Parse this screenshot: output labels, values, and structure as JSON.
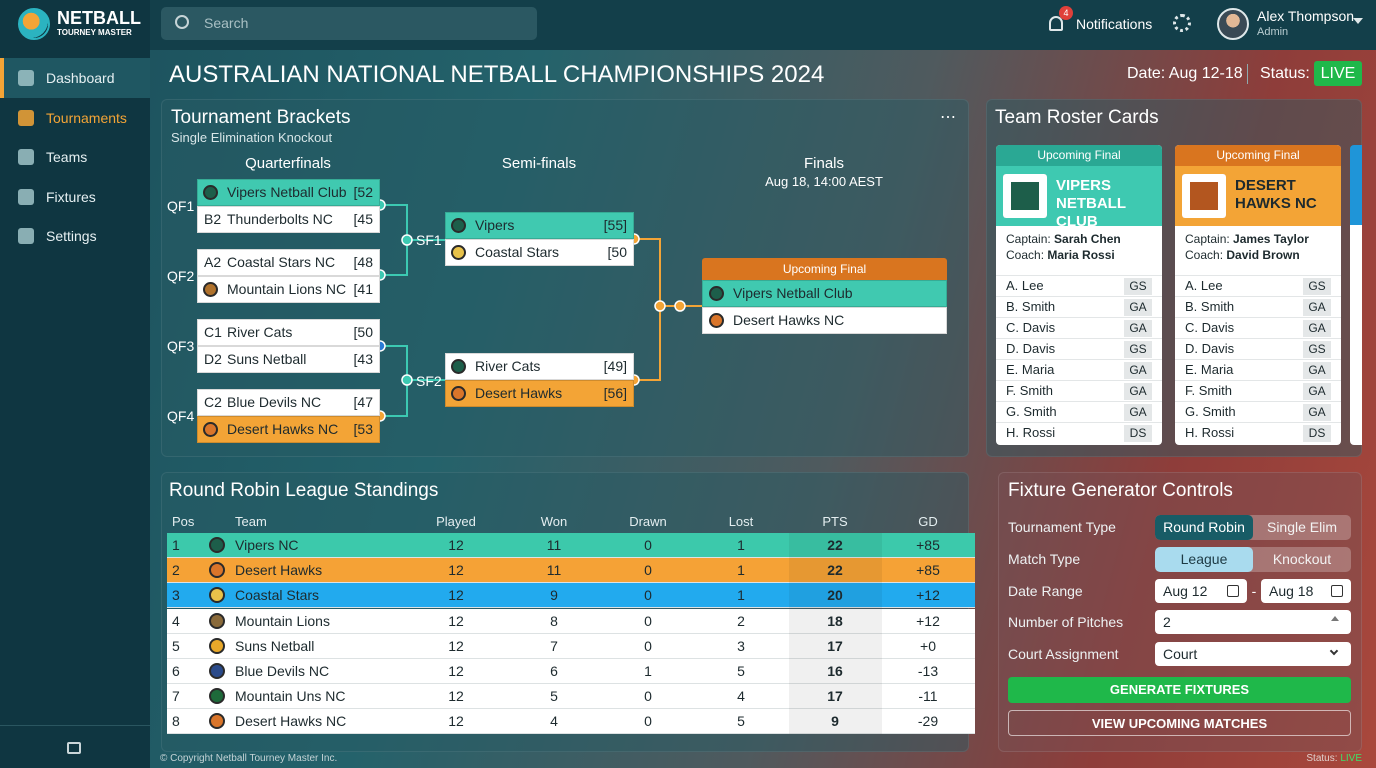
{
  "brand": {
    "name": "NETBALL",
    "tagline": "TOURNEY MASTER"
  },
  "topbar": {
    "search_placeholder": "Search",
    "notification_count": "4",
    "notifications": "Notifications",
    "user_name": "Alex Thompson",
    "user_role": "Admin"
  },
  "nav": [
    "Dashboard",
    "Tournaments",
    "Teams",
    "Fixtures",
    "Settings"
  ],
  "page": {
    "title": "AUSTRALIAN NATIONAL NETBALL CHAMPIONSHIPS 2024",
    "date": "Date: Aug 12-18",
    "status_label": "Status:",
    "status": "LIVE"
  },
  "brackets": {
    "title": "Tournament Brackets",
    "subtitle": "Single Elimination Knockout",
    "rounds": [
      "Quarterfinals",
      "Semi-finals",
      "Finals"
    ],
    "final_time": "Aug 18, 14:00 AEST",
    "quarterfinals": [
      {
        "label": "QF1",
        "teams": [
          {
            "name": "Vipers Netball Club",
            "score": "[52"
          },
          {
            "seed": "B2",
            "name": "Thunderbolts NC",
            "score": "[45"
          }
        ]
      },
      {
        "label": "QF2",
        "teams": [
          {
            "seed": "A2",
            "name": "Coastal Stars NC",
            "score": "[48"
          },
          {
            "name": "Mountain Lions NC",
            "score": "[41"
          }
        ]
      },
      {
        "label": "QF3",
        "teams": [
          {
            "seed": "C1",
            "name": "River Cats",
            "score": "[50"
          },
          {
            "seed": "D2",
            "name": "Suns Netball",
            "score": "[43"
          }
        ]
      },
      {
        "label": "QF4",
        "teams": [
          {
            "seed": "C2",
            "name": "Blue Devils NC",
            "score": "[47"
          },
          {
            "name": "Desert Hawks NC",
            "score": "[53"
          }
        ]
      }
    ],
    "semifinals": [
      {
        "label": "SF1",
        "teams": [
          {
            "name": "Vipers",
            "score": "[55]"
          },
          {
            "name": "Coastal Stars",
            "score": "[50"
          }
        ]
      },
      {
        "label": "SF2",
        "teams": [
          {
            "name": "River Cats",
            "score": "[49]"
          },
          {
            "name": "Desert Hawks",
            "score": "[56]"
          }
        ]
      }
    ],
    "final": {
      "badge": "Upcoming Final",
      "teams": [
        "Vipers Netball Club",
        "Desert Hawks NC"
      ]
    }
  },
  "roster": {
    "title": "Team Roster Cards",
    "cards": [
      {
        "badge": "Upcoming Final",
        "team": "VIPERS NETBALL CLUB",
        "captain_label": "Captain:",
        "captain": "Sarah Chen",
        "coach_label": "Coach:",
        "coach": "Maria Rossi",
        "players": [
          [
            "A. Lee",
            "GS"
          ],
          [
            "B. Smith",
            "GA"
          ],
          [
            "C. Davis",
            "GA"
          ],
          [
            "D. Davis",
            "GS"
          ],
          [
            "E. Maria",
            "GA"
          ],
          [
            "F. Smith",
            "GA"
          ],
          [
            "G. Smith",
            "GA"
          ],
          [
            "H. Rossi",
            "DS"
          ]
        ]
      },
      {
        "badge": "Upcoming Final",
        "team": "DESERT HAWKS NC",
        "captain_label": "Captain:",
        "captain": "James Taylor",
        "coach_label": "Coach:",
        "coach": "David Brown",
        "players": [
          [
            "A. Lee",
            "GS"
          ],
          [
            "B. Smith",
            "GA"
          ],
          [
            "C. Davis",
            "GA"
          ],
          [
            "D. Davis",
            "GS"
          ],
          [
            "E. Maria",
            "GA"
          ],
          [
            "F. Smith",
            "GA"
          ],
          [
            "G. Smith",
            "GA"
          ],
          [
            "H. Rossi",
            "DS"
          ]
        ]
      }
    ]
  },
  "standings": {
    "title": "Round Robin League Standings",
    "columns": [
      "Pos",
      "Team",
      "Played",
      "Won",
      "Drawn",
      "Lost",
      "PTS",
      "GD"
    ],
    "rows": [
      [
        1,
        "Vipers NC",
        12,
        11,
        0,
        1,
        22,
        "+85"
      ],
      [
        2,
        "Desert Hawks",
        12,
        11,
        0,
        1,
        22,
        "+85"
      ],
      [
        3,
        "Coastal Stars",
        12,
        9,
        0,
        1,
        20,
        "+12"
      ],
      [
        4,
        "Mountain Lions",
        12,
        8,
        0,
        2,
        18,
        "+12"
      ],
      [
        5,
        "Suns Netball",
        12,
        7,
        0,
        3,
        17,
        "+0"
      ],
      [
        6,
        "Blue Devils NC",
        12,
        6,
        1,
        5,
        16,
        "-13"
      ],
      [
        7,
        "Mountain Uns NC",
        12,
        5,
        0,
        4,
        17,
        "-11"
      ],
      [
        8,
        "Desert Hawks NC",
        12,
        4,
        0,
        5,
        9,
        "-29"
      ]
    ]
  },
  "fixtures": {
    "title": "Fixture Generator Controls",
    "tournament_type_label": "Tournament Type",
    "tournament_type_options": [
      "Round Robin",
      "Single Elim"
    ],
    "match_type_label": "Match Type",
    "match_type_options": [
      "League",
      "Knockout"
    ],
    "date_range_label": "Date Range",
    "date_from": "Aug 12",
    "date_separator": "-",
    "date_to": "Aug 18",
    "pitches_label": "Number of Pitches",
    "pitches": 2,
    "court_label": "Court Assignment",
    "court": "Court",
    "generate": "GENERATE FIXTURES",
    "view": "VIEW UPCOMING MATCHES"
  },
  "footer": {
    "copyright": "© Copyright Netball Tourney Master Inc.",
    "status_label": "Status:",
    "status": "LIVE"
  }
}
